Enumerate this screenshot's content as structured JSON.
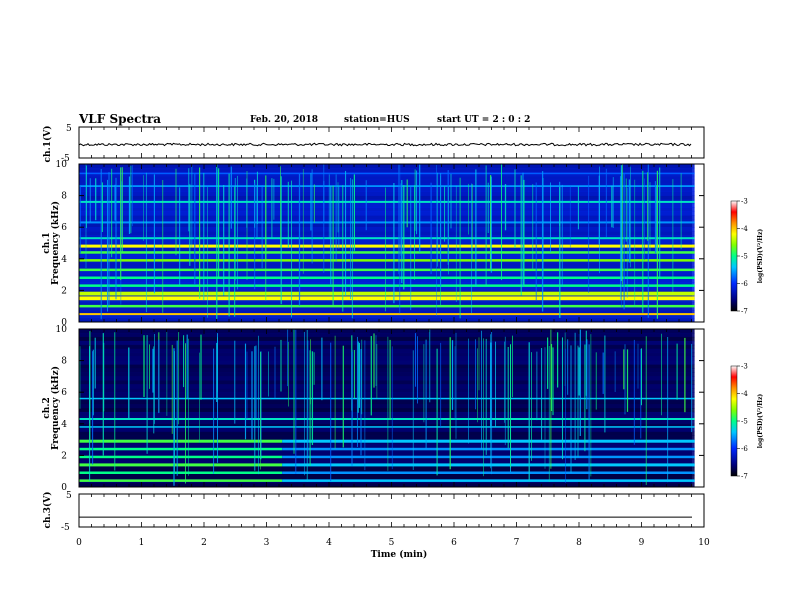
{
  "header": {
    "title": "VLF Spectra",
    "date": "Feb. 20, 2018",
    "station": "station=HUS",
    "start": "start UT =   2 : 0 : 2"
  },
  "colors": {
    "background": "#000000",
    "trace": "#000000",
    "colormap": [
      "#000000",
      "#000060",
      "#0000c0",
      "#0050ff",
      "#00d8ff",
      "#00ff80",
      "#80ff00",
      "#ffff00",
      "#ff8000",
      "#ff0000",
      "#ffffff"
    ]
  },
  "chart_data": [
    {
      "type": "line",
      "id": "ch1-waveform",
      "ylabel": "ch.1(V)",
      "ylim": [
        -5,
        5
      ],
      "yticks": [
        "5",
        "-5"
      ],
      "xlim": [
        0,
        10
      ],
      "series": [
        {
          "values": [
            0,
            0
          ]
        }
      ],
      "grid": false
    },
    {
      "type": "heatmap",
      "id": "ch1-spectrogram",
      "ylabel": "ch.1\nFrequency (kHz)",
      "ylim": [
        0,
        10
      ],
      "yticks": [
        "0",
        "2",
        "4",
        "6",
        "8",
        "10"
      ],
      "xlim": [
        0,
        9.85
      ],
      "bands_khz": [
        {
          "f": 0.5,
          "level": 0.75,
          "w": 0.08
        },
        {
          "f": 1.0,
          "level": 0.55,
          "w": 0.1
        },
        {
          "f": 1.5,
          "level": 0.7,
          "w": 0.15
        },
        {
          "f": 1.8,
          "level": 0.65,
          "w": 0.15
        },
        {
          "f": 2.3,
          "level": 0.5,
          "w": 0.1
        },
        {
          "f": 2.8,
          "level": 0.5,
          "w": 0.1
        },
        {
          "f": 3.3,
          "level": 0.55,
          "w": 0.1
        },
        {
          "f": 3.9,
          "level": 0.6,
          "w": 0.1
        },
        {
          "f": 4.4,
          "level": 0.55,
          "w": 0.1
        },
        {
          "f": 4.8,
          "level": 0.7,
          "w": 0.12
        },
        {
          "f": 5.3,
          "level": 0.45,
          "w": 0.08
        },
        {
          "f": 6.3,
          "level": 0.35,
          "w": 0.08
        },
        {
          "f": 7.6,
          "level": 0.45,
          "w": 0.08
        },
        {
          "f": 8.6,
          "level": 0.35,
          "w": 0.07
        },
        {
          "f": 9.4,
          "level": 0.3,
          "w": 0.06
        }
      ],
      "colorbar": {
        "label": "log(PSD)(V²/Hz)",
        "range": [
          -7,
          -3
        ],
        "ticks": [
          "-3",
          "-4",
          "-5",
          "-6",
          "-7"
        ]
      }
    },
    {
      "type": "heatmap",
      "id": "ch2-spectrogram",
      "ylabel": "ch.2\nFrequency (kHz)",
      "ylim": [
        0,
        10
      ],
      "yticks": [
        "0",
        "2",
        "4",
        "6",
        "8",
        "10"
      ],
      "xlim": [
        0,
        9.85
      ],
      "bands_khz": [
        {
          "f": 0.4,
          "level": 0.55,
          "w": 0.1
        },
        {
          "f": 0.9,
          "level": 0.5,
          "w": 0.1
        },
        {
          "f": 1.4,
          "level": 0.55,
          "w": 0.12
        },
        {
          "f": 1.9,
          "level": 0.5,
          "w": 0.1
        },
        {
          "f": 2.4,
          "level": 0.5,
          "w": 0.1
        },
        {
          "f": 2.9,
          "level": 0.55,
          "w": 0.12
        },
        {
          "f": 3.8,
          "level": 0.4,
          "w": 0.06
        },
        {
          "f": 4.3,
          "level": 0.45,
          "w": 0.08
        },
        {
          "f": 5.6,
          "level": 0.4,
          "w": 0.06
        }
      ],
      "colorbar": {
        "label": "log(PSD)(V²/Hz)",
        "range": [
          -7,
          -3
        ],
        "ticks": [
          "-3",
          "-4",
          "-5",
          "-6",
          "-7"
        ]
      }
    },
    {
      "type": "line",
      "id": "ch3-waveform",
      "ylabel": "ch.3(V)",
      "ylim": [
        -5,
        5
      ],
      "yticks": [
        "5",
        "-5"
      ],
      "xlim": [
        0,
        10
      ],
      "series": [
        {
          "values": [
            -2,
            -2
          ]
        }
      ],
      "grid": false
    }
  ],
  "xaxis": {
    "label": "Time (min)",
    "ticks": [
      "0",
      "1",
      "2",
      "3",
      "4",
      "5",
      "6",
      "7",
      "8",
      "9",
      "10"
    ],
    "range": [
      0,
      10
    ]
  }
}
